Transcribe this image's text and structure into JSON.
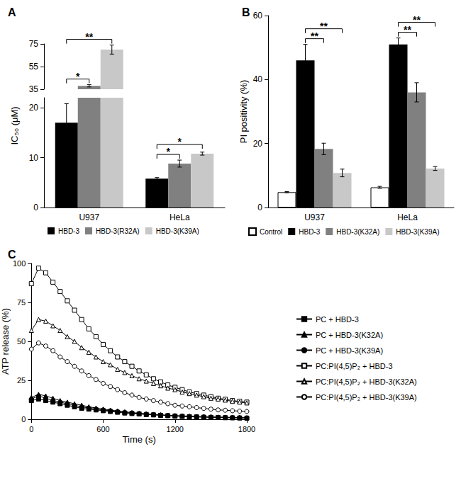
{
  "chart_data": [
    {
      "panel": "A",
      "type": "bar",
      "y_label": "IC₅₀ (μM)",
      "categories": [
        "U937",
        "HeLa"
      ],
      "ylim": [
        0,
        75
      ],
      "yticks": [
        0,
        10,
        20,
        35,
        55,
        75
      ],
      "axis_break": [
        22,
        35
      ],
      "grid": false,
      "legend": "bottom",
      "series": [
        {
          "name": "HBD-3",
          "color": "#000000",
          "values": [
            17,
            5.8
          ],
          "errors": [
            3.8,
            0.2
          ]
        },
        {
          "name": "HBD-3(R32A)",
          "color": "#808080",
          "values": [
            38,
            8.8
          ],
          "errors": [
            1,
            0.7
          ]
        },
        {
          "name": "HBD-3(K39A)",
          "color": "#c8c8c8",
          "values": [
            70,
            10.8
          ],
          "errors": [
            4,
            0.3
          ]
        }
      ],
      "significance": [
        {
          "category": "U937",
          "pair": [
            "HBD-3",
            "HBD-3(R32A)"
          ],
          "label": "*"
        },
        {
          "category": "U937",
          "pair": [
            "HBD-3",
            "HBD-3(K39A)"
          ],
          "label": "**"
        },
        {
          "category": "HeLa",
          "pair": [
            "HBD-3",
            "HBD-3(R32A)"
          ],
          "label": "*"
        },
        {
          "category": "HeLa",
          "pair": [
            "HBD-3",
            "HBD-3(K39A)"
          ],
          "label": "*"
        }
      ]
    },
    {
      "panel": "B",
      "type": "bar",
      "y_label": "PI positivity (%)",
      "categories": [
        "U937",
        "HeLa"
      ],
      "ylim": [
        0,
        60
      ],
      "yticks": [
        0,
        20,
        40,
        60
      ],
      "grid": false,
      "legend": "bottom",
      "series": [
        {
          "name": "Control",
          "color": "#ffffff",
          "values": [
            4.8,
            6.3
          ],
          "errors": [
            0.2,
            0.3
          ]
        },
        {
          "name": "HBD-3",
          "color": "#000000",
          "values": [
            46,
            51
          ],
          "errors": [
            5,
            2
          ]
        },
        {
          "name": "HBD-3(K32A)",
          "color": "#808080",
          "values": [
            18.3,
            36
          ],
          "errors": [
            1.8,
            3
          ]
        },
        {
          "name": "HBD-3(K39A)",
          "color": "#c8c8c8",
          "values": [
            10.8,
            12.2
          ],
          "errors": [
            1.2,
            0.6
          ]
        }
      ],
      "significance": [
        {
          "category": "U937",
          "pair": [
            "HBD-3",
            "HBD-3(K32A)"
          ],
          "label": "**"
        },
        {
          "category": "U937",
          "pair": [
            "HBD-3",
            "HBD-3(K39A)"
          ],
          "label": "**"
        },
        {
          "category": "HeLa",
          "pair": [
            "HBD-3",
            "HBD-3(K32A)"
          ],
          "label": "**"
        },
        {
          "category": "HeLa",
          "pair": [
            "HBD-3",
            "HBD-3(K39A)"
          ],
          "label": "**"
        }
      ]
    },
    {
      "panel": "C",
      "type": "line",
      "x_label": "Time (s)",
      "y_label": "ATP release (%)",
      "xlim": [
        0,
        1800
      ],
      "xticks": [
        0,
        600,
        1200,
        1800
      ],
      "ylim": [
        0,
        100
      ],
      "yticks": [
        0,
        25,
        50,
        75,
        100
      ],
      "grid": false,
      "legend": "right",
      "x": [
        0,
        60,
        120,
        180,
        240,
        300,
        360,
        420,
        480,
        540,
        600,
        660,
        720,
        780,
        840,
        900,
        960,
        1020,
        1080,
        1140,
        1200,
        1260,
        1320,
        1380,
        1440,
        1500,
        1560,
        1620,
        1680,
        1740,
        1800
      ],
      "series": [
        {
          "name": "PC + HBD-3",
          "color": "#000000",
          "marker": "filled-square",
          "line_style": "solid",
          "values": [
            12,
            13,
            12,
            11,
            10,
            9,
            8,
            7,
            6.5,
            6,
            5.5,
            5,
            4.5,
            4,
            3.7,
            3.4,
            3,
            2.8,
            2.5,
            2.3,
            2,
            1.8,
            1.6,
            1.5,
            1.3,
            1.2,
            1.1,
            1,
            0.9,
            0.8,
            0.7
          ]
        },
        {
          "name": "PC + HBD-3(K32A)",
          "color": "#000000",
          "marker": "filled-triangle",
          "line_style": "solid",
          "values": [
            14,
            16,
            15,
            13.5,
            12,
            11,
            10,
            9,
            8,
            7.2,
            6.5,
            5.9,
            5.3,
            4.8,
            4.3,
            3.9,
            3.5,
            3.2,
            2.9,
            2.6,
            2.4,
            2.2,
            2,
            1.8,
            1.6,
            1.5,
            1.4,
            1.3,
            1.2,
            1.1,
            1
          ]
        },
        {
          "name": "PC + HBD-3(K39A)",
          "color": "#000000",
          "marker": "filled-circle",
          "line_style": "solid",
          "values": [
            13,
            15,
            13.5,
            12,
            11,
            10,
            9,
            8,
            7.2,
            6.5,
            6,
            5.4,
            4.9,
            4.4,
            4,
            3.6,
            3.3,
            3,
            2.7,
            2.4,
            2.2,
            2,
            1.8,
            1.6,
            1.5,
            1.4,
            1.3,
            1.2,
            1.1,
            1,
            0.9
          ]
        },
        {
          "name": "PC:PI(4,5)P₂ + HBD-3",
          "color": "#000000",
          "marker": "open-square",
          "line_style": "solid",
          "values": [
            87,
            97,
            94,
            88,
            82,
            76,
            70,
            64,
            58,
            53,
            48,
            44,
            40,
            37,
            34,
            31,
            28.5,
            26,
            24,
            22,
            20.5,
            19,
            17.5,
            16.5,
            15.5,
            14.5,
            13.5,
            12.8,
            12,
            11.5,
            11
          ]
        },
        {
          "name": "PC:PI(4,5)P₂ + HBD-3(K32A)",
          "color": "#000000",
          "marker": "open-triangle",
          "line_style": "solid",
          "values": [
            57,
            64,
            63,
            60,
            57,
            53,
            50,
            46,
            43,
            40,
            37,
            35,
            32,
            30,
            28,
            26,
            24.5,
            23,
            21.5,
            20,
            19,
            17.5,
            16.5,
            15.5,
            14.5,
            13.5,
            13,
            12.3,
            11.5,
            11,
            10.5
          ]
        },
        {
          "name": "PC:PI(4,5)P₂ + HBD-3(K39A)",
          "color": "#000000",
          "marker": "open-circle",
          "line_style": "solid",
          "values": [
            45,
            49,
            47,
            44,
            40,
            37,
            34,
            31,
            28,
            25.5,
            23,
            21,
            19,
            17,
            15.5,
            14,
            13,
            12,
            11,
            10,
            9,
            8.5,
            8,
            7.5,
            7,
            6.5,
            6,
            5.8,
            5.5,
            5.2,
            5
          ]
        }
      ]
    }
  ]
}
